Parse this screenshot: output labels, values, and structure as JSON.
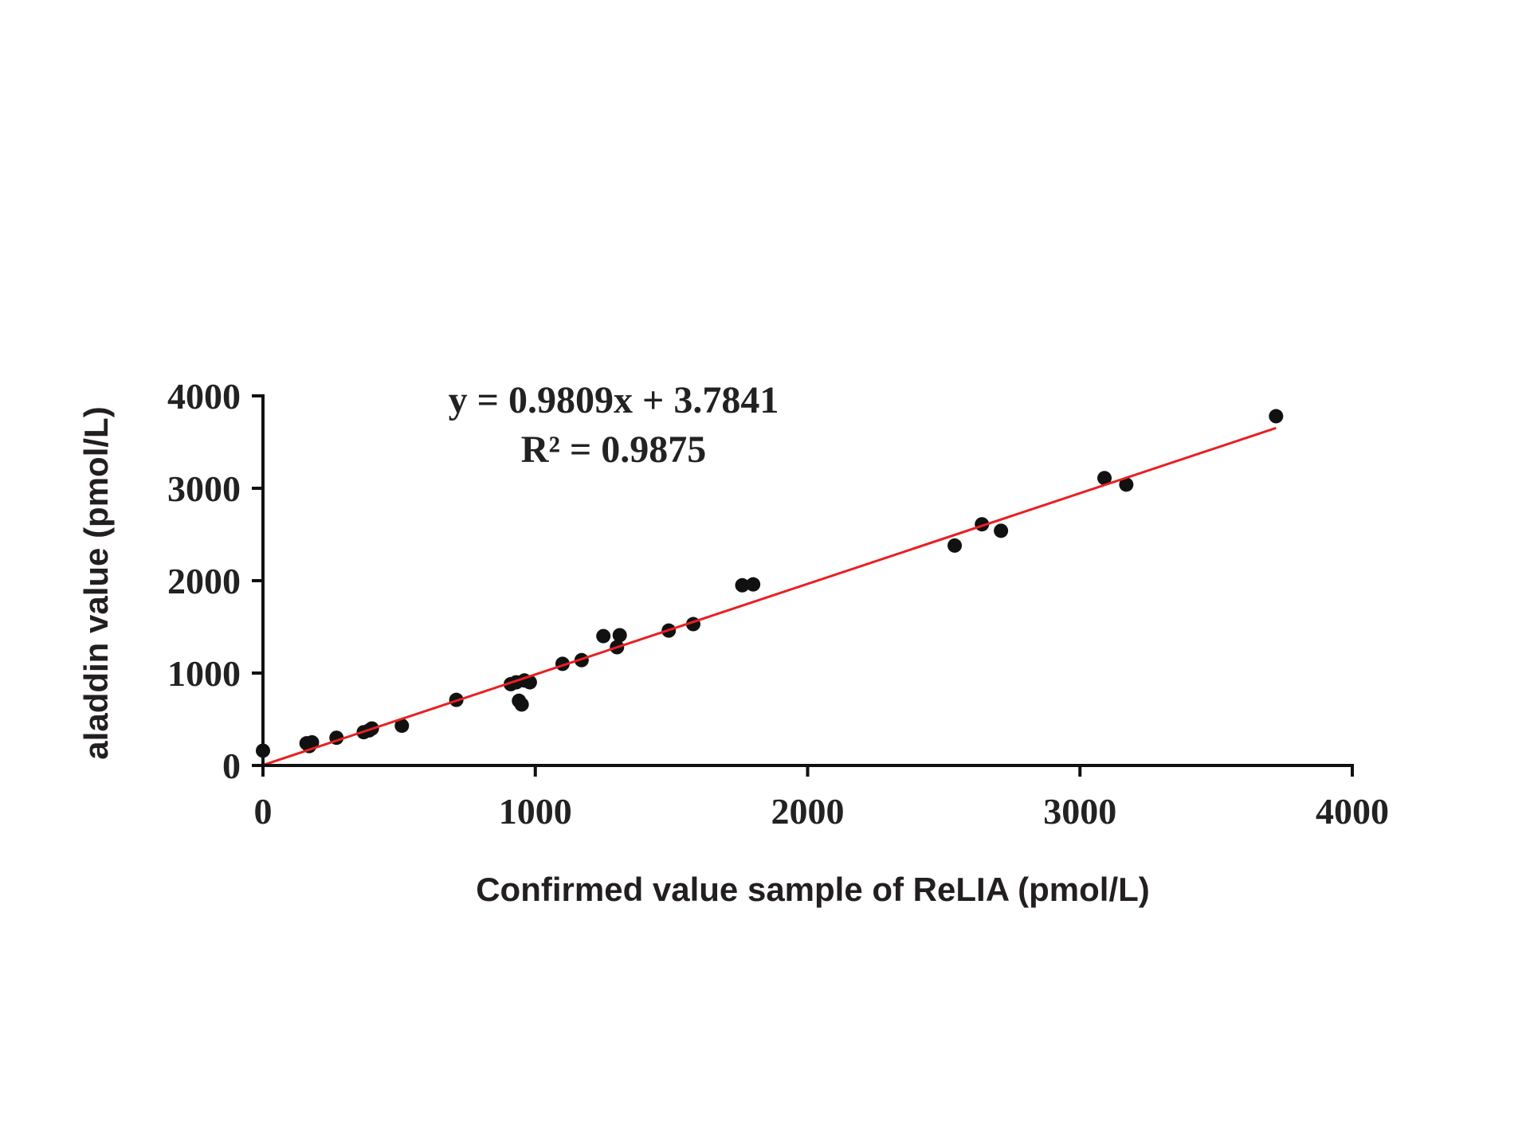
{
  "chart_data": {
    "type": "scatter",
    "xlabel": "Confirmed value sample of ReLIA (pmol/L)",
    "ylabel": "aladdin value (pmol/L)",
    "xlim": [
      0,
      4000
    ],
    "ylim": [
      0,
      4000
    ],
    "x_ticks": [
      "0",
      "1000",
      "2000",
      "3000",
      "4000"
    ],
    "y_ticks": [
      "0",
      "1000",
      "2000",
      "3000",
      "4000"
    ],
    "grid": false,
    "annotations": {
      "equation": "y = 0.9809x + 3.7841",
      "r_squared": "R² = 0.9875"
    },
    "trendline": {
      "slope": 0.9809,
      "intercept": 3.7841,
      "x_range": [
        0,
        3720
      ],
      "color": "#e8201f"
    },
    "point_color": "#111111",
    "points": [
      {
        "x": 0,
        "y": 160
      },
      {
        "x": 160,
        "y": 240
      },
      {
        "x": 170,
        "y": 210
      },
      {
        "x": 180,
        "y": 250
      },
      {
        "x": 270,
        "y": 300
      },
      {
        "x": 370,
        "y": 360
      },
      {
        "x": 390,
        "y": 380
      },
      {
        "x": 400,
        "y": 400
      },
      {
        "x": 510,
        "y": 430
      },
      {
        "x": 710,
        "y": 710
      },
      {
        "x": 910,
        "y": 880
      },
      {
        "x": 930,
        "y": 900
      },
      {
        "x": 940,
        "y": 700
      },
      {
        "x": 950,
        "y": 660
      },
      {
        "x": 960,
        "y": 920
      },
      {
        "x": 980,
        "y": 900
      },
      {
        "x": 1100,
        "y": 1100
      },
      {
        "x": 1170,
        "y": 1140
      },
      {
        "x": 1250,
        "y": 1400
      },
      {
        "x": 1300,
        "y": 1280
      },
      {
        "x": 1310,
        "y": 1410
      },
      {
        "x": 1490,
        "y": 1460
      },
      {
        "x": 1580,
        "y": 1530
      },
      {
        "x": 1760,
        "y": 1950
      },
      {
        "x": 1800,
        "y": 1960
      },
      {
        "x": 2540,
        "y": 2380
      },
      {
        "x": 2640,
        "y": 2610
      },
      {
        "x": 2710,
        "y": 2540
      },
      {
        "x": 3090,
        "y": 3110
      },
      {
        "x": 3170,
        "y": 3040
      },
      {
        "x": 3720,
        "y": 3780
      }
    ]
  }
}
